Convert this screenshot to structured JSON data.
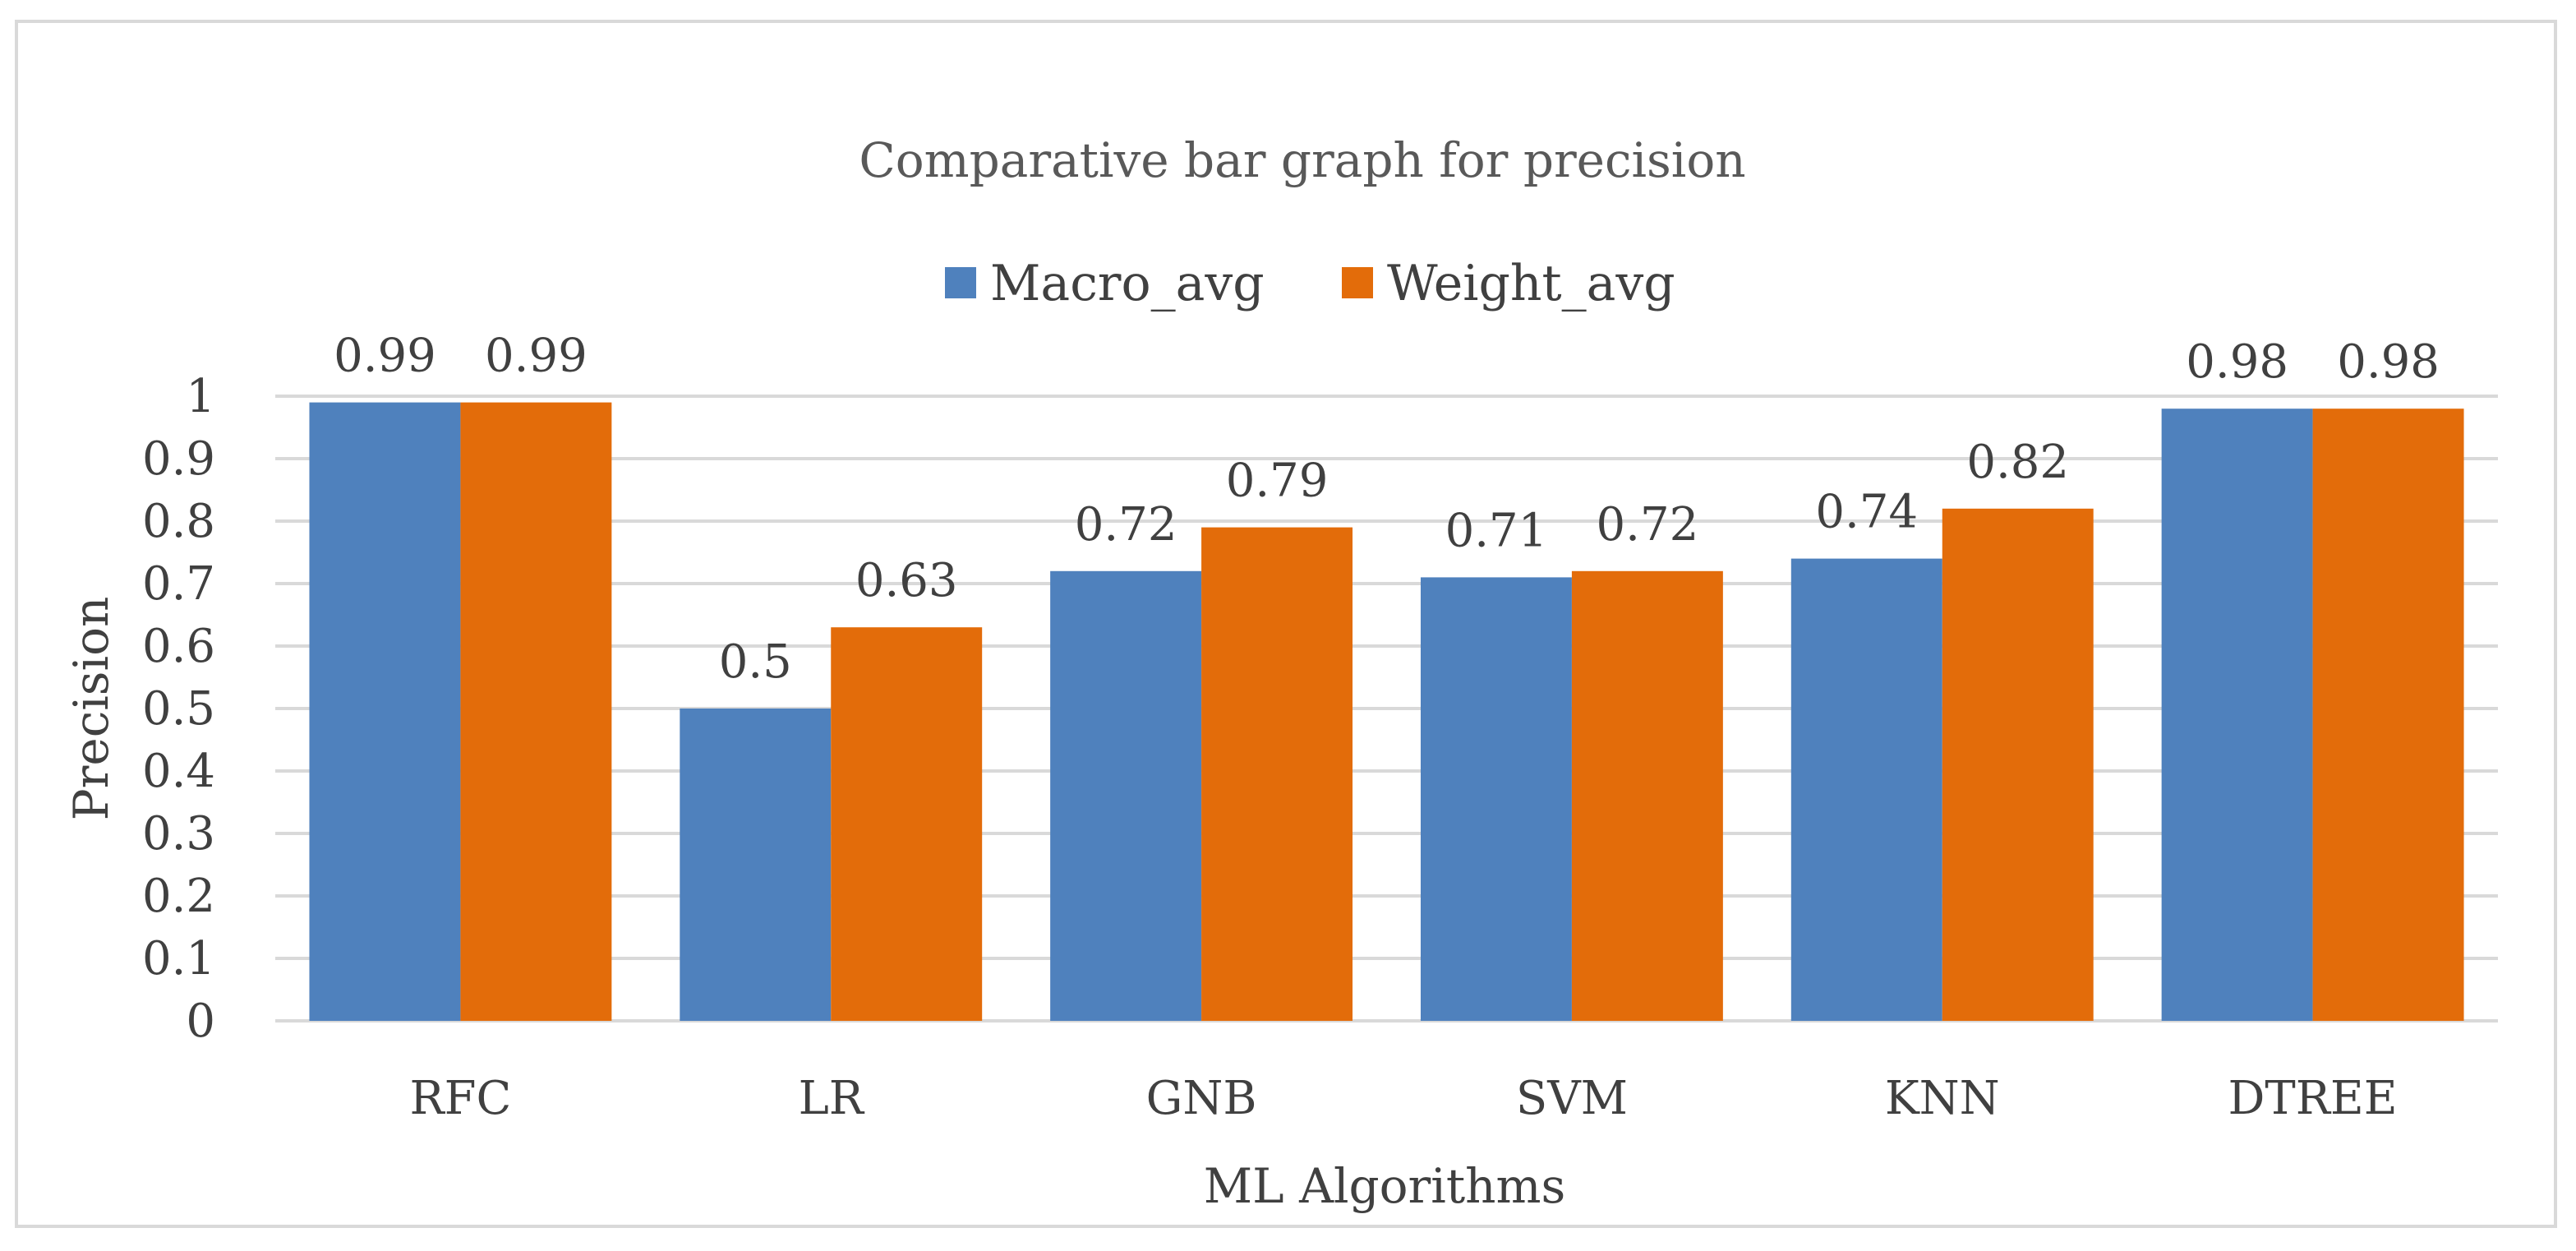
{
  "chart_data": {
    "type": "bar",
    "title": "Comparative bar graph for precision",
    "xlabel": "ML Algorithms",
    "ylabel": "Precision",
    "ylim": [
      0,
      1
    ],
    "yticks": [
      "0",
      "0.1",
      "0.2",
      "0.3",
      "0.4",
      "0.5",
      "0.6",
      "0.7",
      "0.8",
      "0.9",
      "1"
    ],
    "grid": true,
    "legend_position": "top-center",
    "categories": [
      "RFC",
      "LR",
      "GNB",
      "SVM",
      "KNN",
      "DTREE"
    ],
    "series": [
      {
        "name": "Macro_avg",
        "color": "#4f81bd",
        "values": [
          0.99,
          0.5,
          0.72,
          0.71,
          0.74,
          0.98
        ],
        "labels": [
          "0.99",
          "0.5",
          "0.72",
          "0.71",
          "0.74",
          "0.98"
        ]
      },
      {
        "name": "Weight_avg",
        "color": "#e36c0a",
        "values": [
          0.99,
          0.63,
          0.79,
          0.72,
          0.82,
          0.98
        ],
        "labels": [
          "0.99",
          "0.63",
          "0.79",
          "0.72",
          "0.82",
          "0.98"
        ]
      }
    ]
  }
}
